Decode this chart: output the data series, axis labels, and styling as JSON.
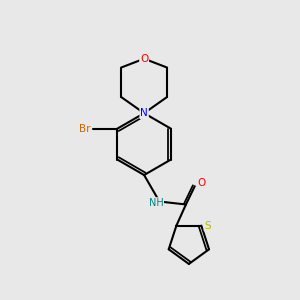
{
  "bg_color": "#e8e8e8",
  "atom_colors": {
    "C": "#000000",
    "N": "#0000ff",
    "O": "#ff0000",
    "S": "#b8b800",
    "Br": "#cc6600",
    "NH": "#008080"
  },
  "bond_color": "#000000",
  "bond_width": 1.5,
  "dbo": 0.07
}
